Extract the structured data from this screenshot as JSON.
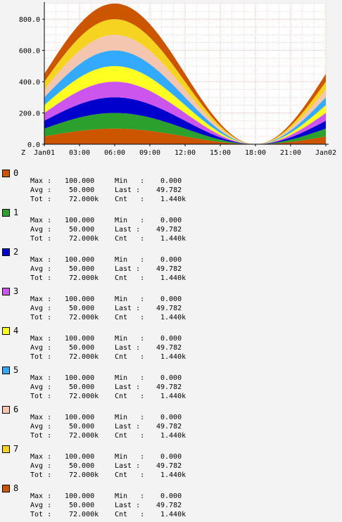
{
  "chart_data": {
    "type": "area",
    "stacked": true,
    "title": "",
    "xlabel": "",
    "ylabel": "",
    "timezone_label": "Z",
    "x_ticks": [
      "Jan01",
      "03:00",
      "06:00",
      "09:00",
      "12:00",
      "15:00",
      "18:00",
      "21:00",
      "Jan02"
    ],
    "y_ticks": [
      "0.0",
      "200.0",
      "400.0",
      "600.0",
      "800.0"
    ],
    "ylim": [
      0,
      900
    ],
    "x_range_hours": [
      0,
      24
    ],
    "grid": true,
    "series_shape": "sine: 50 + 50*sin(2*pi*(t-0h)/24h), identical for all series, stacked",
    "series": [
      {
        "name": "0",
        "color": "#cc5500"
      },
      {
        "name": "1",
        "color": "#2ca02c"
      },
      {
        "name": "2",
        "color": "#0000cc"
      },
      {
        "name": "3",
        "color": "#cc55ee"
      },
      {
        "name": "4",
        "color": "#ffff22"
      },
      {
        "name": "5",
        "color": "#33aaff"
      },
      {
        "name": "6",
        "color": "#f4c6b0"
      },
      {
        "name": "7",
        "color": "#f5d320"
      },
      {
        "name": "8",
        "color": "#cc5500"
      }
    ]
  },
  "legend": {
    "labels": {
      "max": "Max :",
      "min": "Min   :",
      "avg": "Avg :",
      "last": "Last :",
      "tot": "Tot :",
      "cnt": "Cnt   :"
    },
    "values": {
      "max": "100.000",
      "min": "0.000",
      "avg": "50.000",
      "last": "49.782",
      "tot": "72.000k",
      "cnt": "1.440k"
    }
  }
}
